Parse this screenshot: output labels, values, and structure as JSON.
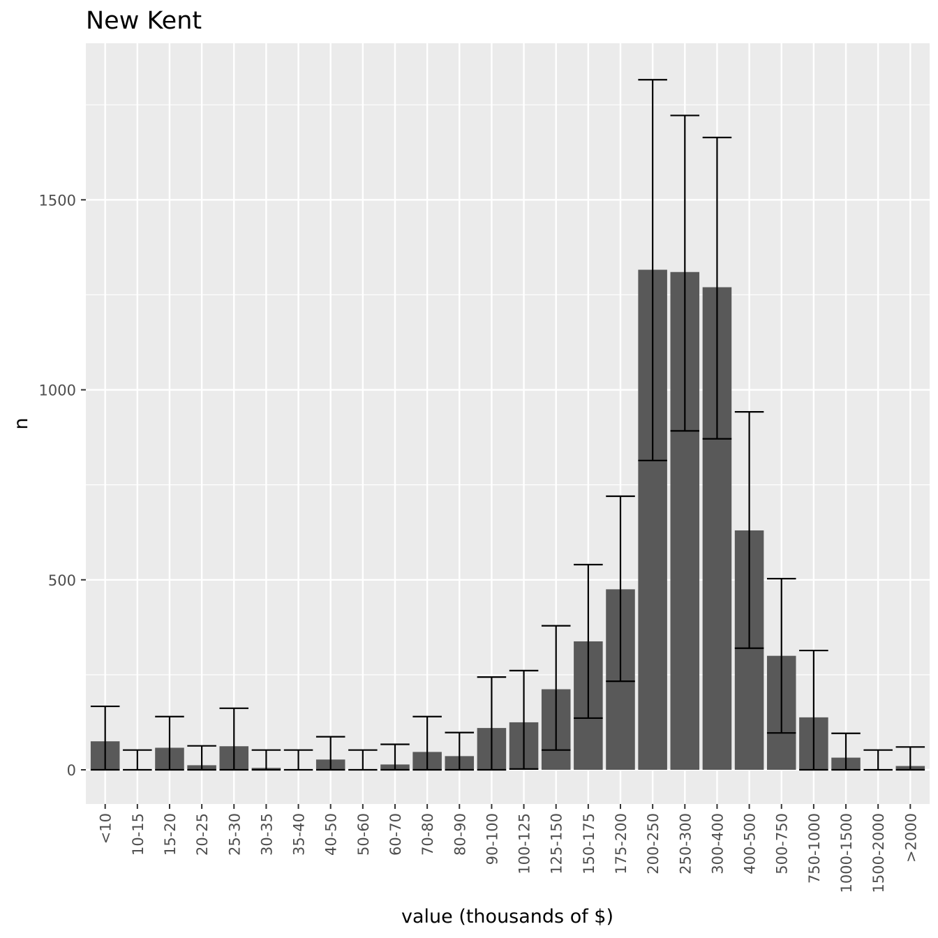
{
  "chart_data": {
    "type": "bar",
    "title": "New Kent",
    "xlabel": "value (thousands of $)",
    "ylabel": "n",
    "categories": [
      "<10",
      "10-15",
      "15-20",
      "20-25",
      "25-30",
      "30-35",
      "35-40",
      "40-50",
      "50-60",
      "60-70",
      "70-80",
      "80-90",
      "90-100",
      "100-125",
      "125-150",
      "150-175",
      "175-200",
      "200-250",
      "250-300",
      "300-400",
      "400-500",
      "500-750",
      "750-1000",
      "1000-1500",
      "1500-2000",
      ">2000"
    ],
    "values": [
      75,
      0,
      58,
      12,
      62,
      5,
      0,
      27,
      0,
      14,
      47,
      36,
      110,
      125,
      212,
      338,
      475,
      1316,
      1310,
      1270,
      630,
      300,
      138,
      32,
      0,
      10
    ],
    "error_upper": [
      167,
      52,
      140,
      63,
      162,
      52,
      52,
      87,
      52,
      67,
      140,
      98,
      244,
      261,
      379,
      540,
      720,
      1816,
      1722,
      1664,
      942,
      503,
      314,
      96,
      52,
      60
    ],
    "error_lower": [
      0,
      0,
      0,
      0,
      0,
      0,
      0,
      0,
      0,
      0,
      0,
      0,
      0,
      2,
      52,
      136,
      233,
      814,
      892,
      871,
      320,
      97,
      0,
      0,
      0,
      0
    ],
    "yticks": [
      0,
      500,
      1000,
      1500
    ],
    "ylim": [
      -90,
      1912
    ],
    "grid": true,
    "colors": {
      "panel": "#ebebeb",
      "grid": "#ffffff",
      "bar": "#595959",
      "error_bar": "#000000"
    }
  }
}
